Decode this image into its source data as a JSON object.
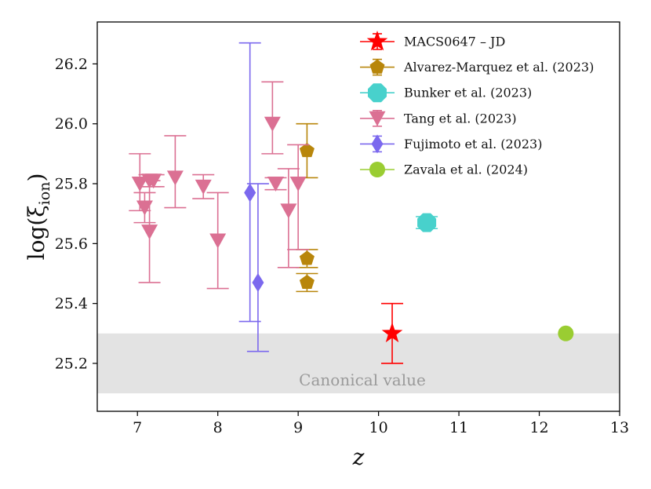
{
  "chart_data": {
    "type": "scatter",
    "xlabel": "z",
    "ylabel": "log(ξ_ion)",
    "ylabel_main": "log(ξ",
    "ylabel_sub": "ion",
    "ylabel_close": ")",
    "xlim": [
      6.5,
      13
    ],
    "ylim": [
      25.04,
      26.34
    ],
    "xticks": [
      7,
      8,
      9,
      10,
      11,
      12,
      13
    ],
    "xtick_labels": [
      "7",
      "8",
      "9",
      "10",
      "11",
      "12",
      "13"
    ],
    "yticks": [
      25.2,
      25.4,
      25.6,
      25.8,
      26.0,
      26.2
    ],
    "ytick_labels": [
      "25.2",
      "25.4",
      "25.6",
      "25.8",
      "26.0",
      "26.2"
    ],
    "band": {
      "label": "Canonical value",
      "y_min": 25.1,
      "y_max": 25.3,
      "color": "#e3e3e3"
    },
    "legend_position": "top-right",
    "series": [
      {
        "name": "MACS0647 – JD",
        "marker": "star",
        "color": "#ff0000",
        "points": [
          {
            "x": 10.17,
            "y": 25.3,
            "ylo": 25.2,
            "yhi": 25.4
          }
        ]
      },
      {
        "name": "Alvarez-Marquez et al. (2023)",
        "marker": "pentagon",
        "color": "#b8860b",
        "points": [
          {
            "x": 9.11,
            "y": 25.91,
            "ylo": 25.82,
            "yhi": 26.0
          },
          {
            "x": 9.11,
            "y": 25.55,
            "ylo": 25.52,
            "yhi": 25.58
          },
          {
            "x": 9.11,
            "y": 25.47,
            "ylo": 25.44,
            "yhi": 25.5
          }
        ]
      },
      {
        "name": "Bunker et al. (2023)",
        "marker": "octagon",
        "color": "#48d1cc",
        "points": [
          {
            "x": 10.6,
            "y": 25.67,
            "ylo": 25.65,
            "yhi": 25.69
          }
        ]
      },
      {
        "name": "Tang et al. (2023)",
        "marker": "triangle-down",
        "color": "#db7093",
        "points": [
          {
            "x": 7.03,
            "y": 25.8,
            "ylo": 25.71,
            "yhi": 25.9
          },
          {
            "x": 7.09,
            "y": 25.72,
            "ylo": 25.67,
            "yhi": 25.77
          },
          {
            "x": 7.15,
            "y": 25.81,
            "ylo": 25.79,
            "yhi": 25.83
          },
          {
            "x": 7.2,
            "y": 25.81,
            "ylo": 25.79,
            "yhi": 25.83
          },
          {
            "x": 7.15,
            "y": 25.64,
            "ylo": 25.47,
            "yhi": 25.81
          },
          {
            "x": 7.47,
            "y": 25.82,
            "ylo": 25.72,
            "yhi": 25.96
          },
          {
            "x": 7.82,
            "y": 25.79,
            "ylo": 25.75,
            "yhi": 25.83
          },
          {
            "x": 8.0,
            "y": 25.61,
            "ylo": 25.45,
            "yhi": 25.77
          },
          {
            "x": 8.68,
            "y": 26.0,
            "ylo": 25.9,
            "yhi": 26.14
          },
          {
            "x": 8.72,
            "y": 25.8,
            "ylo": 25.78,
            "yhi": 25.82
          },
          {
            "x": 8.88,
            "y": 25.71,
            "ylo": 25.52,
            "yhi": 25.85
          },
          {
            "x": 9.0,
            "y": 25.8,
            "ylo": 25.58,
            "yhi": 25.93
          }
        ]
      },
      {
        "name": "Fujimoto et al. (2023)",
        "marker": "diamond",
        "color": "#7b68ee",
        "points": [
          {
            "x": 8.4,
            "y": 25.77,
            "ylo": 25.34,
            "yhi": 26.27
          },
          {
            "x": 8.5,
            "y": 25.47,
            "ylo": 25.24,
            "yhi": 25.8
          }
        ]
      },
      {
        "name": "Zavala et al. (2024)",
        "marker": "circle",
        "color": "#9acd32",
        "points": [
          {
            "x": 12.33,
            "y": 25.3,
            "ylo": 25.3,
            "yhi": 25.3
          }
        ]
      }
    ]
  }
}
